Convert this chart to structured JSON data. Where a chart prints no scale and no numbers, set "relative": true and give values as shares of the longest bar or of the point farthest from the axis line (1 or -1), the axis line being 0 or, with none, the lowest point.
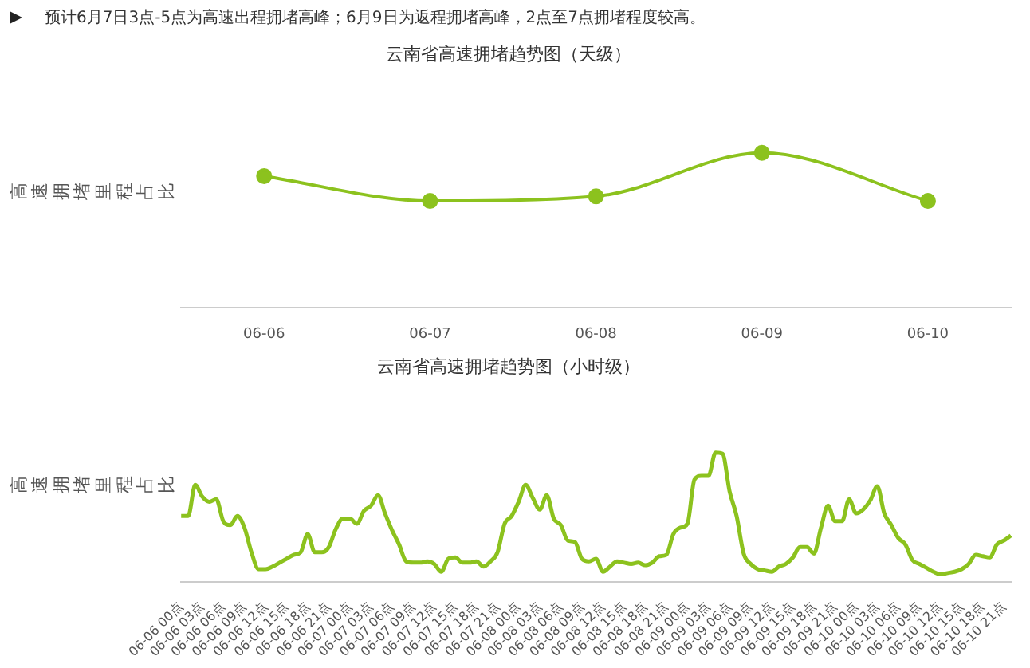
{
  "chart_data": [
    {
      "type": "line",
      "title": "云南省高速拥堵趋势图（天级）",
      "ylabel": "高速拥堵里程占比",
      "annotations": [
        "预计6月7日3点-5点为高速出程拥堵高峰；6月9日为返程拥堵高峰，2点至7点拥堵程度较高。"
      ],
      "categories": [
        "06-06",
        "06-07",
        "06-08",
        "06-09",
        "06-10"
      ],
      "relative": true,
      "legend": false,
      "marker": "circle",
      "line_style": "solid",
      "series": [
        {
          "color": "#8cc21e",
          "values": [
            0.85,
            0.69,
            0.72,
            1,
            0.69
          ]
        }
      ]
    },
    {
      "type": "line",
      "title": "云南省高速拥堵趋势图（小时级）",
      "ylabel": "高速拥堵里程占比",
      "relative": true,
      "legend": false,
      "marker": "none",
      "line_style": "solid",
      "categories": [
        "06-06 00点",
        null,
        null,
        "06-06 03点",
        null,
        null,
        "06-06 06点",
        null,
        null,
        "06-06 09点",
        null,
        null,
        "06-06 12点",
        null,
        null,
        "06-06 15点",
        null,
        null,
        "06-06 18点",
        null,
        null,
        "06-06 21点",
        null,
        null,
        "06-07 00点",
        null,
        null,
        "06-07 03点",
        null,
        null,
        "06-07 06点",
        null,
        null,
        "06-07 09点",
        null,
        null,
        "06-07 12点",
        null,
        null,
        "06-07 15点",
        null,
        null,
        "06-07 18点",
        null,
        null,
        "06-07 21点",
        null,
        null,
        "06-08 00点",
        null,
        null,
        "06-08 03点",
        null,
        null,
        "06-08 06点",
        null,
        null,
        "06-08 09点",
        null,
        null,
        "06-08 12点",
        null,
        null,
        "06-08 15点",
        null,
        null,
        "06-08 18点",
        null,
        null,
        "06-08 21点",
        null,
        null,
        "06-09 00点",
        null,
        null,
        "06-09 03点",
        null,
        null,
        "06-09 06点",
        null,
        null,
        "06-09 09点",
        null,
        null,
        "06-09 12点",
        null,
        null,
        "06-09 15点",
        null,
        null,
        "06-09 18点",
        null,
        null,
        "06-09 21点",
        null,
        null,
        "06-10 00点",
        null,
        null,
        "06-10 03点",
        null,
        null,
        "06-10 06点",
        null,
        null,
        "06-10 09点",
        null,
        null,
        "06-10 12点",
        null,
        null,
        "06-10 15点",
        null,
        null,
        "06-10 18点",
        null,
        null,
        "06-10 21点",
        null
      ],
      "series": [
        {
          "color": "#8cc21e",
          "values": [
            0.51,
            0.51,
            0.75,
            0.66,
            0.62,
            0.64,
            0.47,
            0.44,
            0.51,
            0.42,
            0.23,
            0.1,
            0.1,
            0.12,
            0.15,
            0.18,
            0.21,
            0.23,
            0.37,
            0.23,
            0.23,
            0.27,
            0.41,
            0.49,
            0.49,
            0.45,
            0.55,
            0.59,
            0.67,
            0.53,
            0.4,
            0.29,
            0.16,
            0.15,
            0.15,
            0.16,
            0.14,
            0.08,
            0.18,
            0.19,
            0.15,
            0.15,
            0.16,
            0.12,
            0.16,
            0.23,
            0.45,
            0.51,
            0.62,
            0.75,
            0.65,
            0.56,
            0.67,
            0.49,
            0.44,
            0.32,
            0.31,
            0.18,
            0.16,
            0.18,
            0.08,
            0.12,
            0.16,
            0.15,
            0.14,
            0.15,
            0.13,
            0.15,
            0.2,
            0.21,
            0.37,
            0.42,
            0.45,
            0.79,
            0.82,
            0.82,
            1,
            0.99,
            0.7,
            0.51,
            0.22,
            0.14,
            0.1,
            0.09,
            0.08,
            0.12,
            0.14,
            0.19,
            0.27,
            0.27,
            0.22,
            0.42,
            0.59,
            0.47,
            0.47,
            0.64,
            0.53,
            0.56,
            0.63,
            0.74,
            0.53,
            0.44,
            0.34,
            0.29,
            0.17,
            0.14,
            0.11,
            0.08,
            0.06,
            0.07,
            0.08,
            0.1,
            0.14,
            0.21,
            0.2,
            0.19,
            0.29,
            0.32,
            0.36
          ]
        }
      ]
    }
  ]
}
